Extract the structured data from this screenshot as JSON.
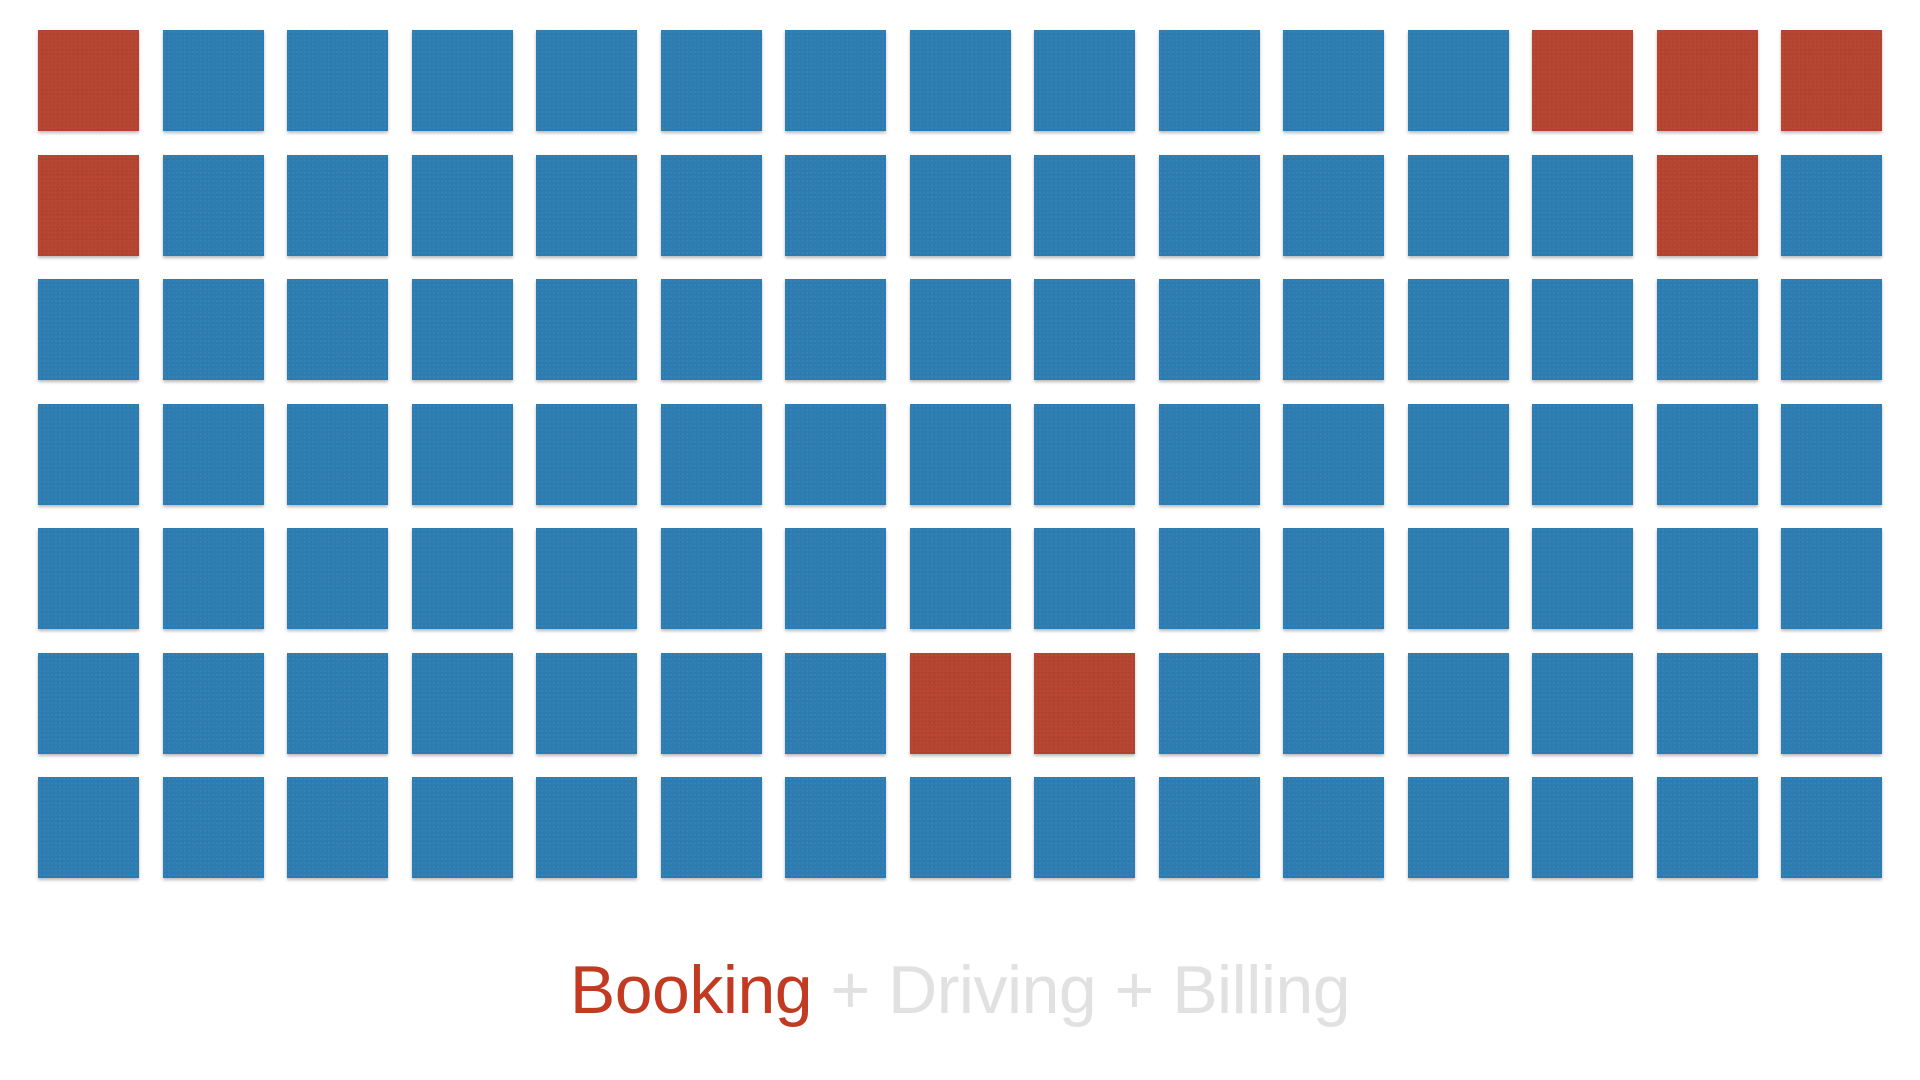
{
  "colors": {
    "normal": "#2d7db2",
    "highlight": "#b4432f",
    "caption_active": "#c23a22",
    "caption_muted": "#e1e1e1"
  },
  "grid": {
    "rows": 7,
    "columns": 15,
    "cells": [
      [
        1,
        0,
        0,
        0,
        0,
        0,
        0,
        0,
        0,
        0,
        0,
        0,
        1,
        1,
        1
      ],
      [
        1,
        0,
        0,
        0,
        0,
        0,
        0,
        0,
        0,
        0,
        0,
        0,
        0,
        1,
        0
      ],
      [
        0,
        0,
        0,
        0,
        0,
        0,
        0,
        0,
        0,
        0,
        0,
        0,
        0,
        0,
        0
      ],
      [
        0,
        0,
        0,
        0,
        0,
        0,
        0,
        0,
        0,
        0,
        0,
        0,
        0,
        0,
        0
      ],
      [
        0,
        0,
        0,
        0,
        0,
        0,
        0,
        0,
        0,
        0,
        0,
        0,
        0,
        0,
        0
      ],
      [
        0,
        0,
        0,
        0,
        0,
        0,
        0,
        1,
        1,
        0,
        0,
        0,
        0,
        0,
        0
      ],
      [
        0,
        0,
        0,
        0,
        0,
        0,
        0,
        0,
        0,
        0,
        0,
        0,
        0,
        0,
        0
      ]
    ]
  },
  "caption": {
    "active": "Booking",
    "rest": " + Driving + Billing"
  }
}
